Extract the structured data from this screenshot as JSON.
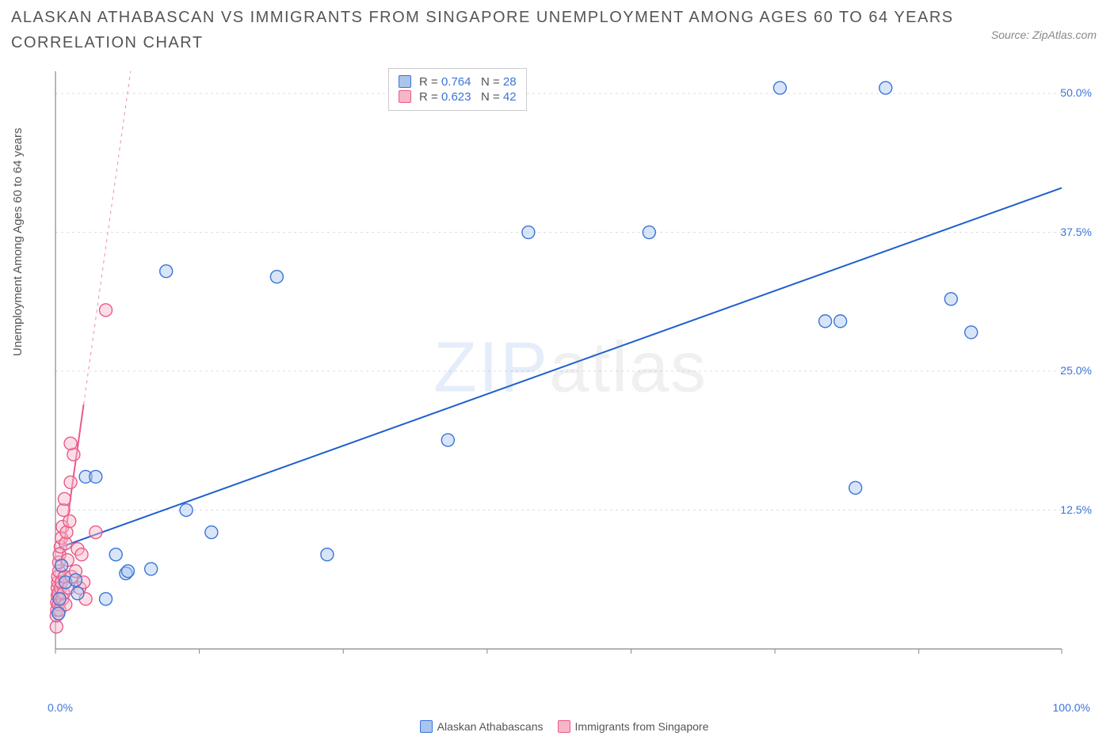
{
  "title": "ALASKAN ATHABASCAN VS IMMIGRANTS FROM SINGAPORE UNEMPLOYMENT AMONG AGES 60 TO 64 YEARS CORRELATION CHART",
  "source": "Source: ZipAtlas.com",
  "ylabel": "Unemployment Among Ages 60 to 64 years",
  "watermark_a": "ZIP",
  "watermark_b": "atlas",
  "chart": {
    "type": "scatter",
    "background_color": "#ffffff",
    "grid_color": "#dddddd",
    "axis_color": "#888888",
    "xlim": [
      0,
      100
    ],
    "ylim": [
      0,
      52
    ],
    "xticks": [
      0,
      14.3,
      28.6,
      42.9,
      57.2,
      71.5,
      85.8,
      100
    ],
    "yticks": [
      12.5,
      25.0,
      37.5,
      50.0
    ],
    "ytick_labels": [
      "12.5%",
      "25.0%",
      "37.5%",
      "50.0%"
    ],
    "xlabel_min": "0.0%",
    "xlabel_max": "100.0%",
    "xlabel_color": "#3b74d8",
    "ytick_color": "#3b74d8",
    "marker_radius": 8,
    "marker_opacity": 0.45,
    "series": [
      {
        "name": "Alaskan Athabascans",
        "color_fill": "#a9c5ef",
        "color_stroke": "#3b74d8",
        "r_value": "0.764",
        "n_value": "28",
        "trend": {
          "x1": 0,
          "y1": 9.0,
          "x2": 100,
          "y2": 41.5,
          "extend_to_x": 100,
          "line_color": "#1f5fd0",
          "line_width": 2
        },
        "points": [
          [
            0.3,
            3.2
          ],
          [
            0.4,
            4.5
          ],
          [
            0.6,
            7.5
          ],
          [
            1.0,
            6.0
          ],
          [
            2.0,
            6.2
          ],
          [
            2.2,
            5.0
          ],
          [
            3.0,
            15.5
          ],
          [
            4.0,
            15.5
          ],
          [
            5.0,
            4.5
          ],
          [
            6.0,
            8.5
          ],
          [
            7.0,
            6.8
          ],
          [
            7.2,
            7.0
          ],
          [
            9.5,
            7.2
          ],
          [
            11.0,
            34.0
          ],
          [
            13.0,
            12.5
          ],
          [
            15.5,
            10.5
          ],
          [
            22.0,
            33.5
          ],
          [
            27.0,
            8.5
          ],
          [
            39.0,
            18.8
          ],
          [
            47.0,
            37.5
          ],
          [
            59.0,
            37.5
          ],
          [
            72.0,
            50.5
          ],
          [
            76.5,
            29.5
          ],
          [
            78.0,
            29.5
          ],
          [
            79.5,
            14.5
          ],
          [
            82.5,
            50.5
          ],
          [
            89.0,
            31.5
          ],
          [
            91.0,
            28.5
          ]
        ]
      },
      {
        "name": "Immigrants from Singapore",
        "color_fill": "#f7b6c6",
        "color_stroke": "#e85a8a",
        "r_value": "0.623",
        "n_value": "42",
        "trend": {
          "x1": 0,
          "y1": 4.0,
          "x2": 2.8,
          "y2": 22.0,
          "extend_to_x": 10,
          "line_color": "#e85a8a",
          "line_width": 2
        },
        "points": [
          [
            0.1,
            2.0
          ],
          [
            0.1,
            3.0
          ],
          [
            0.15,
            3.5
          ],
          [
            0.15,
            4.2
          ],
          [
            0.2,
            4.8
          ],
          [
            0.2,
            5.5
          ],
          [
            0.25,
            6.0
          ],
          [
            0.25,
            6.5
          ],
          [
            0.3,
            4.0
          ],
          [
            0.3,
            5.0
          ],
          [
            0.35,
            7.0
          ],
          [
            0.35,
            7.8
          ],
          [
            0.4,
            8.5
          ],
          [
            0.4,
            3.5
          ],
          [
            0.5,
            9.2
          ],
          [
            0.5,
            5.5
          ],
          [
            0.6,
            10.0
          ],
          [
            0.6,
            6.0
          ],
          [
            0.7,
            11.0
          ],
          [
            0.7,
            4.5
          ],
          [
            0.8,
            12.5
          ],
          [
            0.8,
            5.0
          ],
          [
            0.9,
            13.5
          ],
          [
            0.9,
            6.5
          ],
          [
            1.0,
            9.5
          ],
          [
            1.0,
            4.0
          ],
          [
            1.1,
            10.5
          ],
          [
            1.2,
            8.0
          ],
          [
            1.3,
            5.5
          ],
          [
            1.4,
            11.5
          ],
          [
            1.5,
            15.0
          ],
          [
            1.6,
            6.5
          ],
          [
            1.8,
            17.5
          ],
          [
            2.0,
            7.0
          ],
          [
            2.2,
            9.0
          ],
          [
            2.4,
            5.5
          ],
          [
            2.6,
            8.5
          ],
          [
            2.8,
            6.0
          ],
          [
            1.5,
            18.5
          ],
          [
            4.0,
            10.5
          ],
          [
            5.0,
            30.5
          ],
          [
            3.0,
            4.5
          ]
        ]
      }
    ]
  },
  "stat_legend": {
    "rows": [
      {
        "swatch_fill": "#a9c5ef",
        "swatch_stroke": "#3b74d8",
        "r_label": "R = ",
        "r": "0.764",
        "n_label": "N = ",
        "n": "28"
      },
      {
        "swatch_fill": "#f7b6c6",
        "swatch_stroke": "#e85a8a",
        "r_label": "R = ",
        "r": "0.623",
        "n_label": "N = ",
        "n": "42"
      }
    ]
  },
  "bottom_legend": {
    "items": [
      {
        "swatch_fill": "#a9c5ef",
        "swatch_stroke": "#3b74d8",
        "label": "Alaskan Athabascans"
      },
      {
        "swatch_fill": "#f7b6c6",
        "swatch_stroke": "#e85a8a",
        "label": "Immigrants from Singapore"
      }
    ]
  }
}
